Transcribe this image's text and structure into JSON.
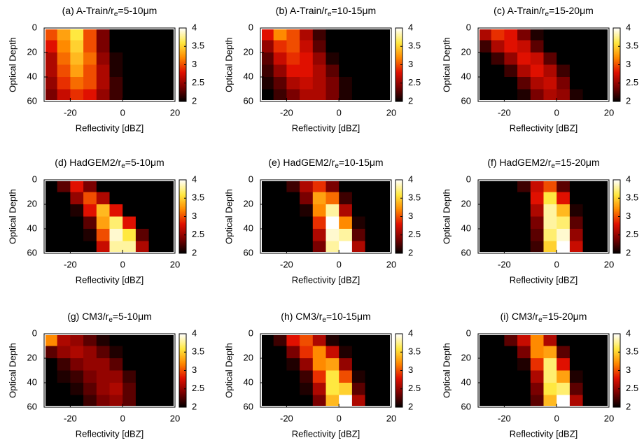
{
  "colormap": [
    "#000000",
    "#7a0000",
    "#e01000",
    "#ff8a00",
    "#ffe840",
    "#ffffff"
  ],
  "chart_data": [
    {
      "type": "heatmap",
      "title": "(a) A-Train/r",
      "title_sub": "e",
      "title_end": "=5-10μm",
      "x_label": "Reflectivity [dBZ]",
      "y_label": "Optical Depth",
      "xbins": [
        -30,
        -25,
        -20,
        -15,
        -10,
        -5,
        0,
        5,
        10,
        15,
        20
      ],
      "ybins": [
        0,
        10,
        20,
        30,
        40,
        50,
        60
      ],
      "z": [
        [
          3.0,
          3.3,
          3.6,
          3.0,
          2.4,
          2,
          2,
          2,
          2,
          2
        ],
        [
          2.8,
          3.2,
          3.5,
          3.0,
          2.4,
          2,
          2,
          2,
          2,
          2
        ],
        [
          2.6,
          3.1,
          3.4,
          3.1,
          2.5,
          2.1,
          2,
          2,
          2,
          2
        ],
        [
          2.6,
          3.0,
          3.3,
          3.0,
          2.6,
          2.1,
          2,
          2,
          2,
          2
        ],
        [
          2.5,
          2.9,
          3.1,
          3.0,
          2.6,
          2.2,
          2,
          2,
          2,
          2
        ],
        [
          2.4,
          2.7,
          2.9,
          2.8,
          2.5,
          2.2,
          2,
          2,
          2,
          2
        ]
      ],
      "xlim": [
        -30,
        20
      ],
      "ylim": [
        60,
        0
      ],
      "xticks": [
        -20,
        0,
        20
      ],
      "yticks": [
        0,
        20,
        40,
        60
      ],
      "clim": [
        2,
        4
      ],
      "cticks": [
        2,
        2.5,
        3,
        3.5,
        4
      ]
    },
    {
      "type": "heatmap",
      "title": "(b) A-Train/r",
      "title_sub": "e",
      "title_end": "=10-15μm",
      "x_label": "Reflectivity [dBZ]",
      "y_label": "Optical Depth",
      "xbins": [
        -30,
        -25,
        -20,
        -15,
        -10,
        -5,
        0,
        5,
        10,
        15,
        20
      ],
      "ybins": [
        0,
        10,
        20,
        30,
        40,
        50,
        60
      ],
      "z": [
        [
          2.8,
          3.2,
          3.0,
          2.6,
          2.2,
          2,
          2,
          2,
          2,
          2
        ],
        [
          2.5,
          2.9,
          3.0,
          2.7,
          2.3,
          2,
          2,
          2,
          2,
          2
        ],
        [
          2.3,
          2.7,
          2.9,
          2.8,
          2.5,
          2.1,
          2,
          2,
          2,
          2
        ],
        [
          2.2,
          2.5,
          2.8,
          2.8,
          2.6,
          2.3,
          2,
          2,
          2,
          2
        ],
        [
          2.1,
          2.3,
          2.6,
          2.7,
          2.6,
          2.4,
          2.1,
          2,
          2,
          2
        ],
        [
          2,
          2.2,
          2.4,
          2.6,
          2.6,
          2.4,
          2.1,
          2,
          2,
          2
        ]
      ],
      "xlim": [
        -30,
        20
      ],
      "ylim": [
        60,
        0
      ],
      "xticks": [
        -20,
        0,
        20
      ],
      "yticks": [
        0,
        20,
        40,
        60
      ],
      "clim": [
        2,
        4
      ],
      "cticks": [
        2,
        2.5,
        3,
        3.5,
        4
      ]
    },
    {
      "type": "heatmap",
      "title": "(c) A-Train/r",
      "title_sub": "e",
      "title_end": "=15-20μm",
      "x_label": "Reflectivity [dBZ]",
      "y_label": "Optical Depth",
      "xbins": [
        -30,
        -25,
        -20,
        -15,
        -10,
        -5,
        0,
        5,
        10,
        15,
        20
      ],
      "ybins": [
        0,
        10,
        20,
        30,
        40,
        50,
        60
      ],
      "z": [
        [
          2.6,
          2.9,
          2.8,
          2.4,
          2.1,
          2,
          2,
          2,
          2,
          2
        ],
        [
          2.2,
          2.6,
          2.8,
          2.7,
          2.3,
          2,
          2,
          2,
          2,
          2
        ],
        [
          2,
          2.2,
          2.5,
          2.8,
          2.7,
          2.3,
          2,
          2,
          2,
          2
        ],
        [
          2,
          2,
          2.2,
          2.6,
          2.8,
          2.6,
          2.2,
          2,
          2,
          2
        ],
        [
          2,
          2,
          2,
          2.3,
          2.6,
          2.7,
          2.4,
          2,
          2,
          2
        ],
        [
          2,
          2,
          2,
          2.1,
          2.4,
          2.6,
          2.5,
          2.1,
          2,
          2
        ]
      ],
      "xlim": [
        -30,
        20
      ],
      "ylim": [
        60,
        0
      ],
      "xticks": [
        -20,
        0,
        20
      ],
      "yticks": [
        0,
        20,
        40,
        60
      ],
      "clim": [
        2,
        4
      ],
      "cticks": [
        2,
        2.5,
        3,
        3.5,
        4
      ]
    },
    {
      "type": "heatmap",
      "title": "(d) HadGEM2/r",
      "title_sub": "e",
      "title_end": "=5-10μm",
      "x_label": "Reflectivity [dBZ]",
      "y_label": "Optical Depth",
      "xbins": [
        -30,
        -25,
        -20,
        -15,
        -10,
        -5,
        0,
        5,
        10,
        15,
        20
      ],
      "ybins": [
        0,
        10,
        20,
        30,
        40,
        50,
        60
      ],
      "z": [
        [
          2,
          2.3,
          2.8,
          2.4,
          2,
          2,
          2,
          2,
          2,
          2
        ],
        [
          2,
          2,
          2.5,
          3.0,
          2.6,
          2,
          2,
          2,
          2,
          2
        ],
        [
          2,
          2,
          2.1,
          2.8,
          3.4,
          2.8,
          2,
          2,
          2,
          2
        ],
        [
          2,
          2,
          2,
          2.3,
          3.3,
          3.7,
          2.8,
          2,
          2,
          2
        ],
        [
          2,
          2,
          2,
          2.1,
          3.0,
          3.9,
          3.6,
          2.3,
          2,
          2
        ],
        [
          2,
          2,
          2,
          2,
          2.7,
          3.8,
          3.8,
          2.6,
          2,
          2
        ]
      ],
      "xlim": [
        -30,
        20
      ],
      "ylim": [
        60,
        0
      ],
      "xticks": [
        -20,
        0,
        20
      ],
      "yticks": [
        0,
        20,
        40,
        60
      ],
      "clim": [
        2,
        4
      ],
      "cticks": [
        2,
        2.5,
        3,
        3.5,
        4
      ]
    },
    {
      "type": "heatmap",
      "title": "(e) HadGEM2/r",
      "title_sub": "e",
      "title_end": "=10-15μm",
      "x_label": "Reflectivity [dBZ]",
      "y_label": "Optical Depth",
      "xbins": [
        -30,
        -25,
        -20,
        -15,
        -10,
        -5,
        0,
        5,
        10,
        15,
        20
      ],
      "ybins": [
        0,
        10,
        20,
        30,
        40,
        50,
        60
      ],
      "z": [
        [
          2,
          2,
          2.2,
          2.6,
          2.9,
          2.4,
          2,
          2,
          2,
          2
        ],
        [
          2,
          2,
          2,
          2.4,
          3.3,
          3.1,
          2.2,
          2,
          2,
          2
        ],
        [
          2,
          2,
          2,
          2.1,
          3.2,
          3.8,
          2.6,
          2,
          2,
          2
        ],
        [
          2,
          2,
          2,
          2,
          2.9,
          4,
          3.2,
          2.1,
          2,
          2
        ],
        [
          2,
          2,
          2,
          2,
          2.6,
          3.9,
          3.8,
          2.3,
          2,
          2
        ],
        [
          2,
          2,
          2,
          2,
          2.4,
          3.8,
          4,
          2.6,
          2,
          2
        ]
      ],
      "xlim": [
        -30,
        20
      ],
      "ylim": [
        60,
        0
      ],
      "xticks": [
        -20,
        0,
        20
      ],
      "yticks": [
        0,
        20,
        40,
        60
      ],
      "clim": [
        2,
        4
      ],
      "cticks": [
        2,
        2.5,
        3,
        3.5,
        4
      ]
    },
    {
      "type": "heatmap",
      "title": "(f) HadGEM2/r",
      "title_sub": "e",
      "title_end": "=15-20μm",
      "x_label": "Reflectivity [dBZ]",
      "y_label": "Optical Depth",
      "xbins": [
        -30,
        -25,
        -20,
        -15,
        -10,
        -5,
        0,
        5,
        10,
        15,
        20
      ],
      "ybins": [
        0,
        10,
        20,
        30,
        40,
        50,
        60
      ],
      "z": [
        [
          2,
          2,
          2,
          2.2,
          2.7,
          3.0,
          2.3,
          2,
          2,
          2
        ],
        [
          2,
          2,
          2,
          2,
          2.8,
          3.6,
          2.8,
          2,
          2,
          2
        ],
        [
          2,
          2,
          2,
          2,
          2.6,
          3.8,
          3.4,
          2.1,
          2,
          2
        ],
        [
          2,
          2,
          2,
          2,
          2.4,
          3.8,
          3.7,
          2.3,
          2,
          2
        ],
        [
          2,
          2,
          2,
          2,
          2.3,
          3.7,
          3.9,
          2.5,
          2,
          2
        ],
        [
          2,
          2,
          2,
          2,
          2.2,
          3.5,
          4,
          2.7,
          2,
          2
        ]
      ],
      "xlim": [
        -30,
        20
      ],
      "ylim": [
        60,
        0
      ],
      "xticks": [
        -20,
        0,
        20
      ],
      "yticks": [
        0,
        20,
        40,
        60
      ],
      "clim": [
        2,
        4
      ],
      "cticks": [
        2,
        2.5,
        3,
        3.5,
        4
      ]
    },
    {
      "type": "heatmap",
      "title": "(g) CM3/r",
      "title_sub": "e",
      "title_end": "=5-10μm",
      "x_label": "Reflectivity [dBZ]",
      "y_label": "Optical Depth",
      "xbins": [
        -30,
        -25,
        -20,
        -15,
        -10,
        -5,
        0,
        5,
        10,
        15,
        20
      ],
      "ybins": [
        0,
        10,
        20,
        30,
        40,
        50,
        60
      ],
      "z": [
        [
          3.2,
          2.6,
          2.5,
          2.3,
          2.1,
          2,
          2,
          2,
          2,
          2
        ],
        [
          2.3,
          2.5,
          2.6,
          2.5,
          2.3,
          2.1,
          2,
          2,
          2,
          2
        ],
        [
          2,
          2.2,
          2.4,
          2.5,
          2.5,
          2.3,
          2,
          2,
          2,
          2
        ],
        [
          2,
          2.1,
          2.2,
          2.4,
          2.5,
          2.5,
          2.2,
          2,
          2,
          2
        ],
        [
          2,
          2,
          2.1,
          2.3,
          2.5,
          2.6,
          2.3,
          2,
          2,
          2
        ],
        [
          2,
          2,
          2,
          2.2,
          2.4,
          2.5,
          2.3,
          2,
          2,
          2
        ]
      ],
      "xlim": [
        -30,
        20
      ],
      "ylim": [
        60,
        0
      ],
      "xticks": [
        -20,
        0,
        20
      ],
      "yticks": [
        0,
        20,
        40,
        60
      ],
      "clim": [
        2,
        4
      ],
      "cticks": [
        2,
        2.5,
        3,
        3.5,
        4
      ]
    },
    {
      "type": "heatmap",
      "title": "(h) CM3/r",
      "title_sub": "e",
      "title_end": "=10-15μm",
      "x_label": "Reflectivity [dBZ]",
      "y_label": "Optical Depth",
      "xbins": [
        -30,
        -25,
        -20,
        -15,
        -10,
        -5,
        0,
        5,
        10,
        15,
        20
      ],
      "ybins": [
        0,
        10,
        20,
        30,
        40,
        50,
        60
      ],
      "z": [
        [
          2,
          2.2,
          2.8,
          3.0,
          2.6,
          2.1,
          2,
          2,
          2,
          2
        ],
        [
          2,
          2,
          2.4,
          2.9,
          3.2,
          2.7,
          2.1,
          2,
          2,
          2
        ],
        [
          2,
          2,
          2.1,
          2.5,
          3.2,
          3.3,
          2.5,
          2,
          2,
          2
        ],
        [
          2,
          2,
          2,
          2.2,
          2.9,
          3.6,
          3.0,
          2.1,
          2,
          2
        ],
        [
          2,
          2,
          2,
          2.1,
          2.6,
          3.6,
          3.5,
          2.3,
          2,
          2
        ],
        [
          2,
          2,
          2,
          2,
          2.4,
          3.4,
          4,
          2.6,
          2,
          2
        ]
      ],
      "xlim": [
        -30,
        20
      ],
      "ylim": [
        60,
        0
      ],
      "xticks": [
        -20,
        0,
        20
      ],
      "yticks": [
        0,
        20,
        40,
        60
      ],
      "clim": [
        2,
        4
      ],
      "cticks": [
        2,
        2.5,
        3,
        3.5,
        4
      ]
    },
    {
      "type": "heatmap",
      "title": "(i) CM3/r",
      "title_sub": "e",
      "title_end": "=15-20μm",
      "x_label": "Reflectivity [dBZ]",
      "y_label": "Optical Depth",
      "xbins": [
        -30,
        -25,
        -20,
        -15,
        -10,
        -5,
        0,
        5,
        10,
        15,
        20
      ],
      "ybins": [
        0,
        10,
        20,
        30,
        40,
        50,
        60
      ],
      "z": [
        [
          2,
          2,
          2.3,
          2.7,
          3.2,
          2.6,
          2,
          2,
          2,
          2
        ],
        [
          2,
          2,
          2,
          2.4,
          3.2,
          3.3,
          2.3,
          2,
          2,
          2
        ],
        [
          2,
          2,
          2,
          2.1,
          2.9,
          3.7,
          2.8,
          2,
          2,
          2
        ],
        [
          2,
          2,
          2,
          2,
          2.6,
          3.7,
          3.3,
          2.1,
          2,
          2
        ],
        [
          2,
          2,
          2,
          2,
          2.4,
          3.6,
          3.7,
          2.3,
          2,
          2
        ],
        [
          2,
          2,
          2,
          2,
          2.3,
          3.4,
          4,
          2.6,
          2,
          2
        ]
      ],
      "xlim": [
        -30,
        20
      ],
      "ylim": [
        60,
        0
      ],
      "xticks": [
        -20,
        0,
        20
      ],
      "yticks": [
        0,
        20,
        40,
        60
      ],
      "clim": [
        2,
        4
      ],
      "cticks": [
        2,
        2.5,
        3,
        3.5,
        4
      ]
    }
  ]
}
